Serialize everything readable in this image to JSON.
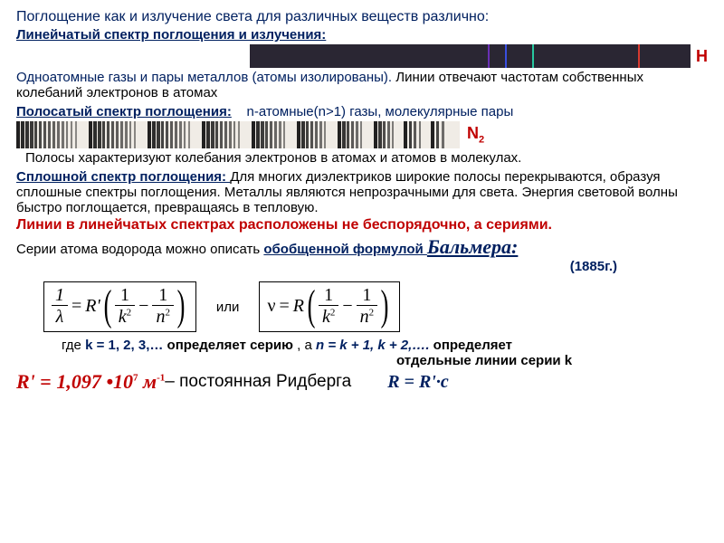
{
  "intro": "Поглощение как и излучение света для различных веществ различно:",
  "sect1": {
    "title": "Линейчатый спектр поглощения и излучения:",
    "element_label": "H",
    "spectrum": {
      "bg": "#2a2633",
      "lines": [
        {
          "pos": 54,
          "color": "#6a30b5"
        },
        {
          "pos": 58,
          "color": "#3a4fe0"
        },
        {
          "pos": 64,
          "color": "#28c8a0"
        },
        {
          "pos": 88,
          "color": "#d83a30"
        }
      ]
    },
    "body_a": "Одноатомные газы и пары металлов (атомы изолированы). ",
    "body_b": "Линии отвечают частотам собственных колебаний электронов в атомах"
  },
  "sect2": {
    "title": "Полосатый спектр поглощения:",
    "subtitle": "n-атомные(n>1) газы, молекулярные пары",
    "element_label": "N",
    "element_sub": "2",
    "body": "Полосы характеризуют колебания электронов в атомах и атомов в молекулах."
  },
  "sect3": {
    "title": "Сплошной спектр поглощения: ",
    "body": "Для многих диэлектриков широкие полосы перекрываются, образуя сплошные спектры поглощения. Металлы являются непрозрачными для света. Энергия световой волны быстро поглощается, превращаясь в тепловую."
  },
  "series_line": "Линии в линейчатых спектрах расположены не беспорядочно, а сериями.",
  "hydrogen_line_a": "Серии атома водорода можно описать ",
  "hydrogen_line_b": "обобщенной формулой ",
  "balmer": "Бальмера:",
  "year": "(1885г.)",
  "or_word": "или",
  "formula1": {
    "left_num": "1",
    "left_den": "λ",
    "coef": "R'",
    "t1_num": "1",
    "t1_den_base": "k",
    "t1_den_exp": "2",
    "t2_num": "1",
    "t2_den_base": "n",
    "t2_den_exp": "2"
  },
  "formula2": {
    "lhs": "ν",
    "coef": "R",
    "t1_num": "1",
    "t1_den_base": "k",
    "t1_den_exp": "2",
    "t2_num": "1",
    "t2_den_base": "n",
    "t2_den_exp": "2"
  },
  "where": {
    "prefix": "где ",
    "k_vals": "k = 1, 2, 3,…",
    "k_part": "определяет серию",
    "sep": ",   а   ",
    "n_vals": "n = k + 1, k + 2,…. ",
    "n_part1": "определяет",
    "n_part2": "отдельные линии серии k"
  },
  "rydberg": {
    "sym": "R'",
    "eq": " = ",
    "val": "1,097 ",
    "dot": "•",
    "ten": "10",
    "exp": "7",
    "unit": " м",
    "unit_exp": "-1",
    "label": " – постоянная Ридберга"
  },
  "relation": "R = R'·c"
}
